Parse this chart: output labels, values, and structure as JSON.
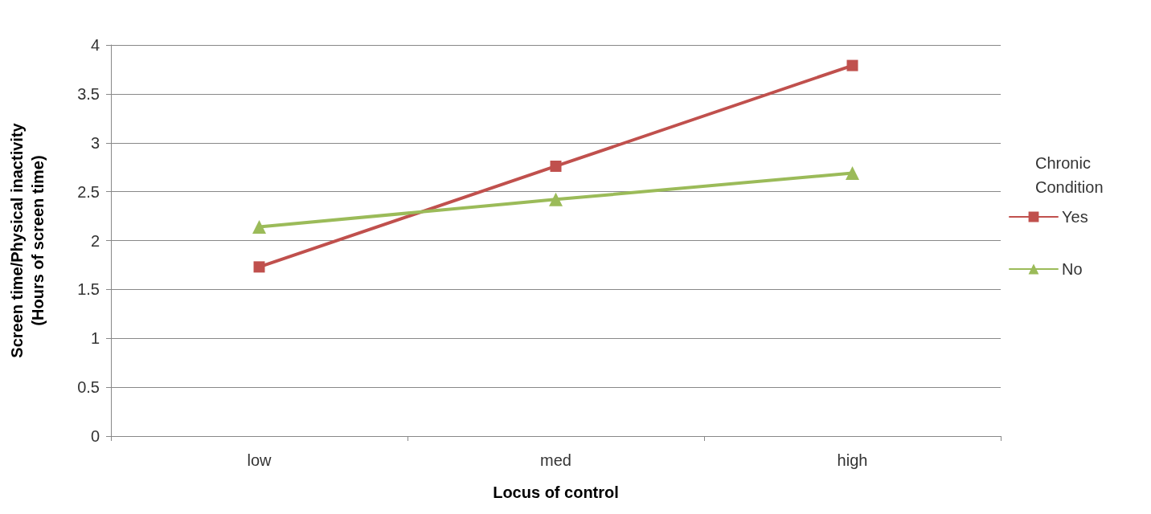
{
  "chart_data": {
    "type": "line",
    "xlabel": "Locus of control",
    "ylabel": "Screen time/Physical inactivity (Hours of screen time)",
    "legend_title": "Chronic Condition",
    "categories": [
      "low",
      "med",
      "high"
    ],
    "series": [
      {
        "name": "Yes",
        "color": "#c0504d",
        "marker": "square",
        "values": [
          1.73,
          2.76,
          3.79
        ]
      },
      {
        "name": "No",
        "color": "#9bbb59",
        "marker": "triangle",
        "values": [
          2.14,
          2.42,
          2.69
        ]
      }
    ],
    "ylim": [
      0,
      4
    ],
    "yticks": [
      0,
      0.5,
      1,
      1.5,
      2,
      2.5,
      3,
      3.5,
      4
    ],
    "grid": "y",
    "legend": "right",
    "line_style": "solid"
  }
}
